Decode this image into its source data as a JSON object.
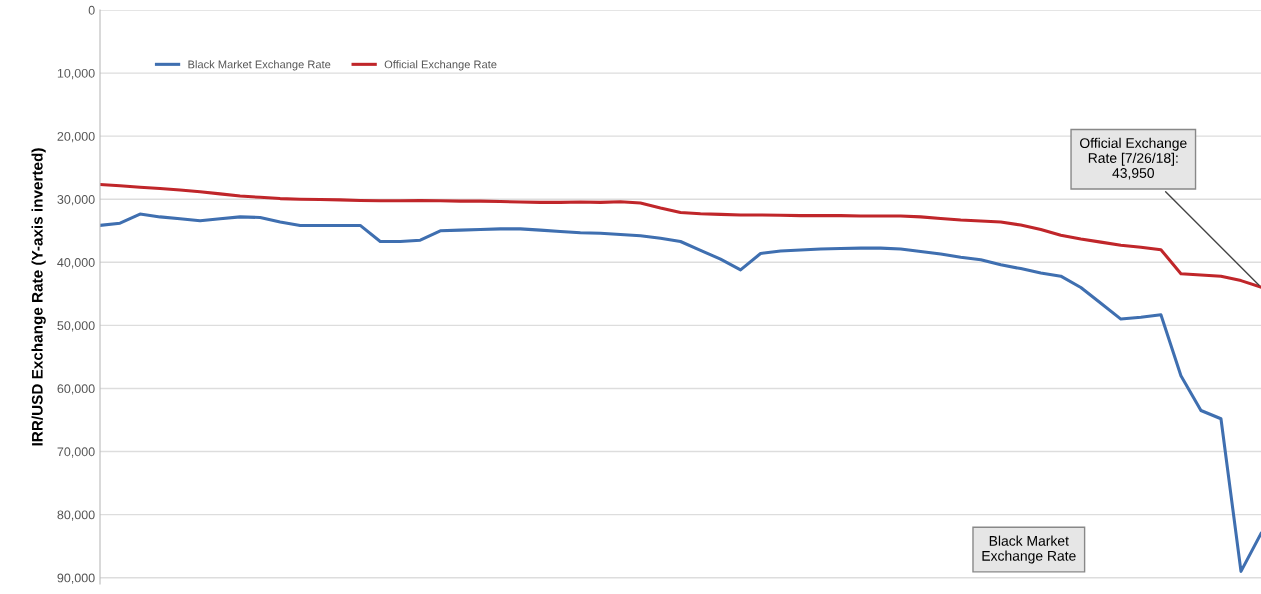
{
  "chart_data": {
    "type": "line",
    "ylabel": "IRR/USD Exchange Rate (Y-axis inverted)",
    "categories": [
      null,
      null,
      null,
      null,
      null,
      null,
      null,
      null,
      null,
      null,
      null,
      null,
      null,
      null,
      null,
      null,
      null,
      null,
      null,
      null,
      null,
      null,
      null,
      null,
      null,
      null,
      null,
      null,
      null,
      null,
      null,
      null,
      null,
      null,
      null,
      null,
      null,
      null,
      null,
      null,
      null,
      null,
      null,
      null,
      null,
      null,
      null,
      null,
      null,
      null,
      null,
      null,
      null,
      null,
      null,
      null,
      null,
      null,
      null
    ],
    "series": [
      {
        "name": "Black Market Exchange Rate",
        "color": "#3f6fb0",
        "values": [
          34150,
          33800,
          32350,
          32800,
          33100,
          33400,
          33100,
          32800,
          32900,
          33600,
          34150,
          34150,
          34150,
          34150,
          36700,
          36700,
          36500,
          35000,
          34900,
          34800,
          34700,
          34700,
          34900,
          35100,
          35300,
          35400,
          35600,
          35800,
          36200,
          36700,
          38100,
          39500,
          41200,
          38600,
          38200,
          38050,
          37900,
          37800,
          37750,
          37750,
          37900,
          38300,
          38700,
          39200,
          39600,
          40400,
          41000,
          41700,
          42200,
          44000,
          46500,
          49000,
          48700,
          48300,
          58000,
          63500,
          64800,
          89000,
          83000
        ]
      },
      {
        "name": "Official Exchange Rate",
        "color": "#c0262a",
        "values": [
          27650,
          27850,
          28100,
          28300,
          28550,
          28800,
          29150,
          29500,
          29700,
          29900,
          30000,
          30050,
          30100,
          30200,
          30250,
          30250,
          30200,
          30250,
          30300,
          30300,
          30350,
          30450,
          30500,
          30500,
          30450,
          30500,
          30400,
          30600,
          31400,
          32100,
          32300,
          32400,
          32500,
          32500,
          32550,
          32600,
          32600,
          32600,
          32650,
          32650,
          32650,
          32800,
          33050,
          33300,
          33450,
          33600,
          34100,
          34800,
          35700,
          36300,
          36800,
          37300,
          37600,
          38000,
          41800,
          42000,
          42200,
          42900,
          43950
        ]
      }
    ],
    "ylim": [
      91000,
      0
    ],
    "yticks": [
      0,
      {
        "value": 10000,
        "label": "10,000"
      },
      {
        "value": 20000,
        "label": "20,000"
      },
      {
        "value": 30000,
        "label": "30,000"
      },
      {
        "value": 40000,
        "label": "40,000"
      },
      {
        "value": 50000,
        "label": "50,000"
      },
      {
        "value": 60000,
        "label": "60,000"
      },
      {
        "value": 70000,
        "label": "70,000"
      },
      {
        "value": 80000,
        "label": "80,000"
      },
      {
        "value": 90000,
        "label": "90,000"
      }
    ],
    "annotations": [
      "Official Exchange\nRate [7/26/18]:\n43,950",
      "Black Market\nExchange Rate"
    ],
    "grid": "y",
    "legend": "top left",
    "tick_labels": "y",
    "marker": "none",
    "line_style": "solid"
  }
}
